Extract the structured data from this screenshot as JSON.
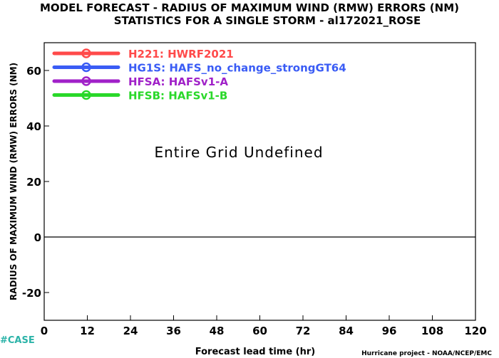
{
  "chart_data": {
    "type": "line",
    "title": "MODEL FORECAST - RADIUS OF MAXIMUM WIND (RMW) ERRORS (NM)",
    "subtitle": "STATISTICS FOR A SINGLE STORM - al172021_ROSE",
    "xlabel": "Forecast lead time (hr)",
    "ylabel": "RADIUS OF MAXIMUM WIND (RMW) ERRORS (NM)",
    "xlim": [
      0,
      120
    ],
    "ylim": [
      -30,
      70
    ],
    "xticks": [
      0,
      12,
      24,
      36,
      48,
      60,
      72,
      84,
      96,
      108,
      120
    ],
    "yticks": [
      -20,
      0,
      20,
      40,
      60
    ],
    "zero_line": true,
    "grid": false,
    "legend_position": "top-left",
    "annotation": "Entire Grid Undefined",
    "series": [
      {
        "name": "H221: HWRF2021",
        "color": "#ff4a4a",
        "values": []
      },
      {
        "name": "HG1S: HAFS_no_change_strongGT64",
        "color": "#3a5cf5",
        "values": []
      },
      {
        "name": "HFSA: HAFSv1-A",
        "color": "#a021c8",
        "values": []
      },
      {
        "name": "HFSB: HAFSv1-B",
        "color": "#2ad82a",
        "values": []
      }
    ]
  },
  "footer": {
    "credit": "Hurricane project - NOAA/NCEP/EMC",
    "case_tag": "#CASE"
  }
}
